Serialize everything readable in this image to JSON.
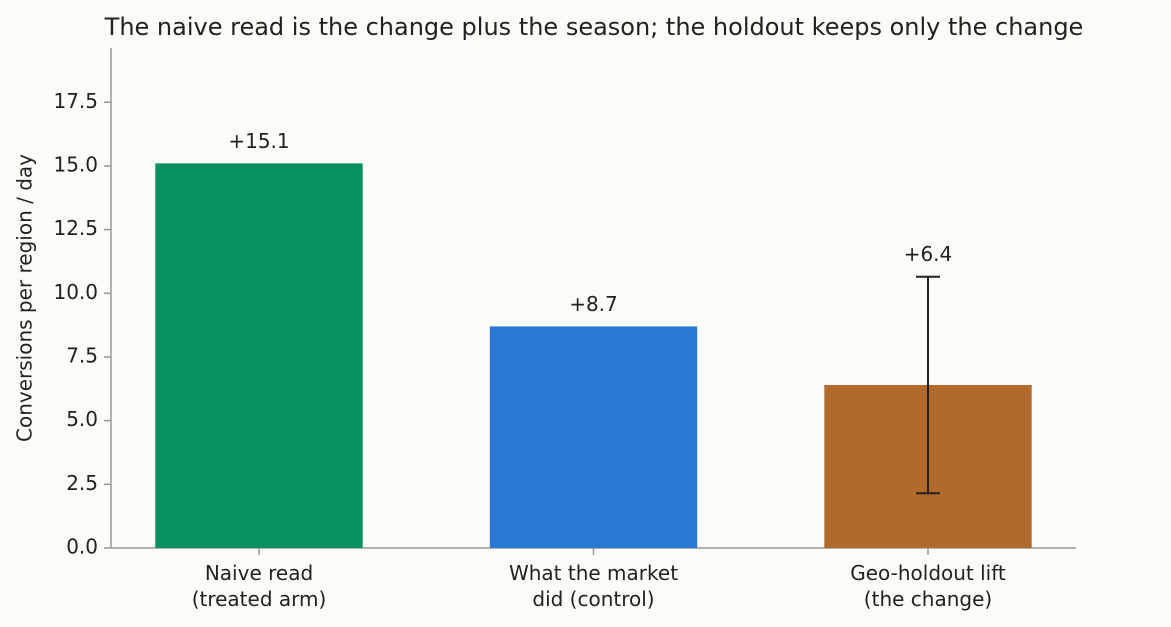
{
  "chart_data": {
    "type": "bar",
    "title": "The naive read is the change plus the season; the holdout keeps only the change",
    "y_label": "Conversions per region / day",
    "categories": [
      "Naive read\n(treated arm)",
      "What the market\ndid (control)",
      "Geo-holdout lift\n(the change)"
    ],
    "values": [
      15.1,
      8.7,
      6.4
    ],
    "value_labels": [
      "+15.1",
      "+8.7",
      "+6.4"
    ],
    "errors": [
      null,
      null,
      4.25
    ],
    "colors": [
      "#0a8f5e",
      "#2a78d6",
      "#b06a2c"
    ],
    "ylim": [
      0,
      19.63
    ],
    "yticks": [
      {
        "value": 0,
        "label": "0.0"
      },
      2.5,
      {
        "value": 5,
        "label": "5.0"
      },
      7.5,
      {
        "value": 10,
        "label": "10.0"
      },
      12.5,
      {
        "value": 15,
        "label": "15.0"
      },
      17.5
    ],
    "grid": false
  }
}
